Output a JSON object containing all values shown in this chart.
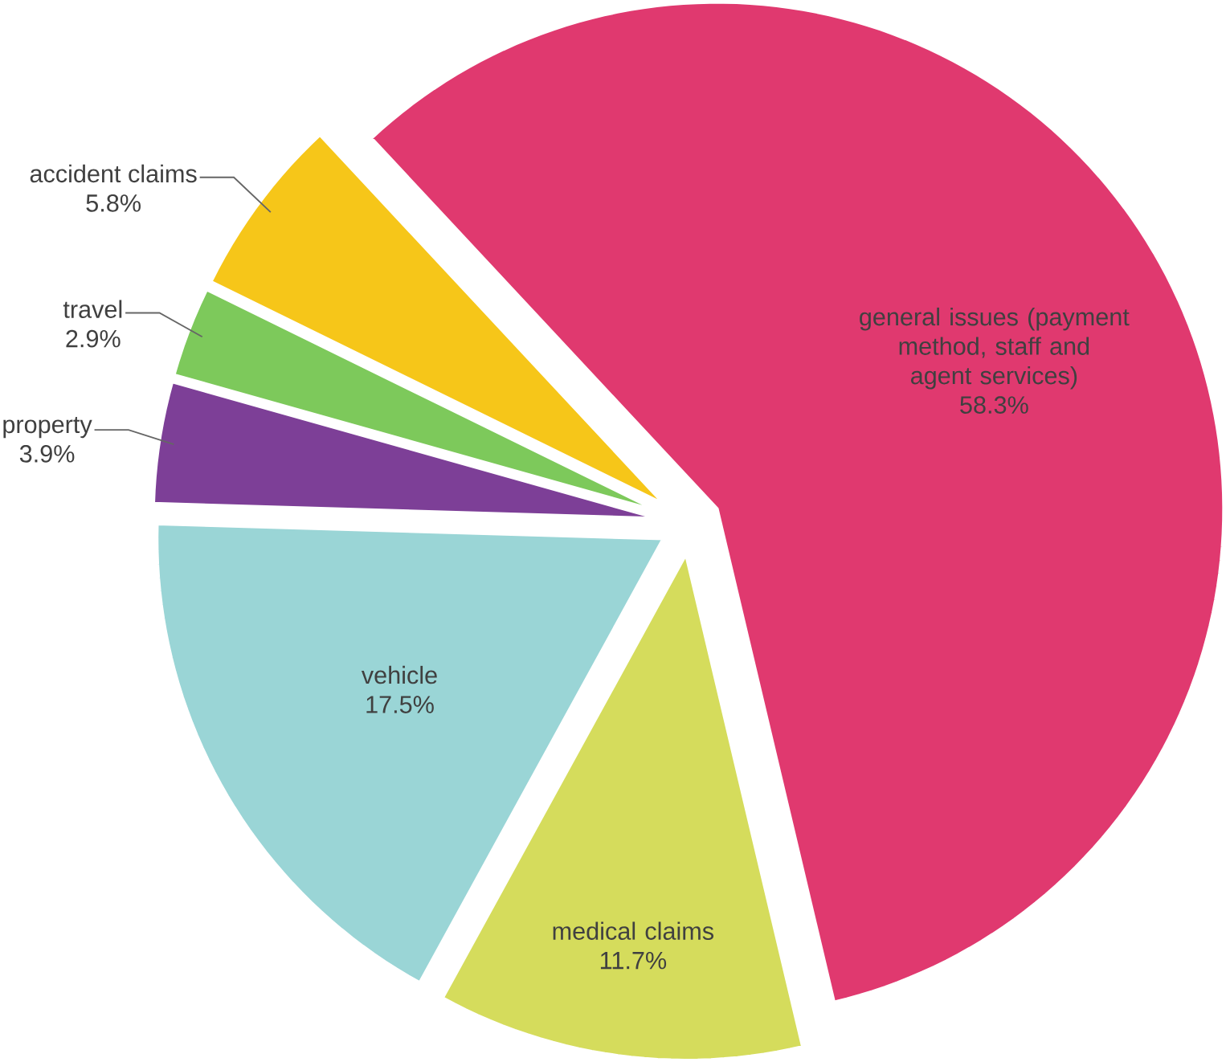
{
  "chart_data": {
    "type": "pie",
    "categories": [
      "general issues (payment method, staff and agent services)",
      "medical claims",
      "vehicle",
      "property",
      "travel",
      "accident claims"
    ],
    "values": [
      58.3,
      11.7,
      17.5,
      3.9,
      2.9,
      5.8
    ],
    "value_labels": [
      "58.3%",
      "11.7%",
      "17.5%",
      "3.9%",
      "2.9%",
      "5.8%"
    ],
    "colors": [
      "#e0396f",
      "#d5dc5c",
      "#9ad5d6",
      "#7d3f97",
      "#7dc95b",
      "#f6c619"
    ]
  }
}
